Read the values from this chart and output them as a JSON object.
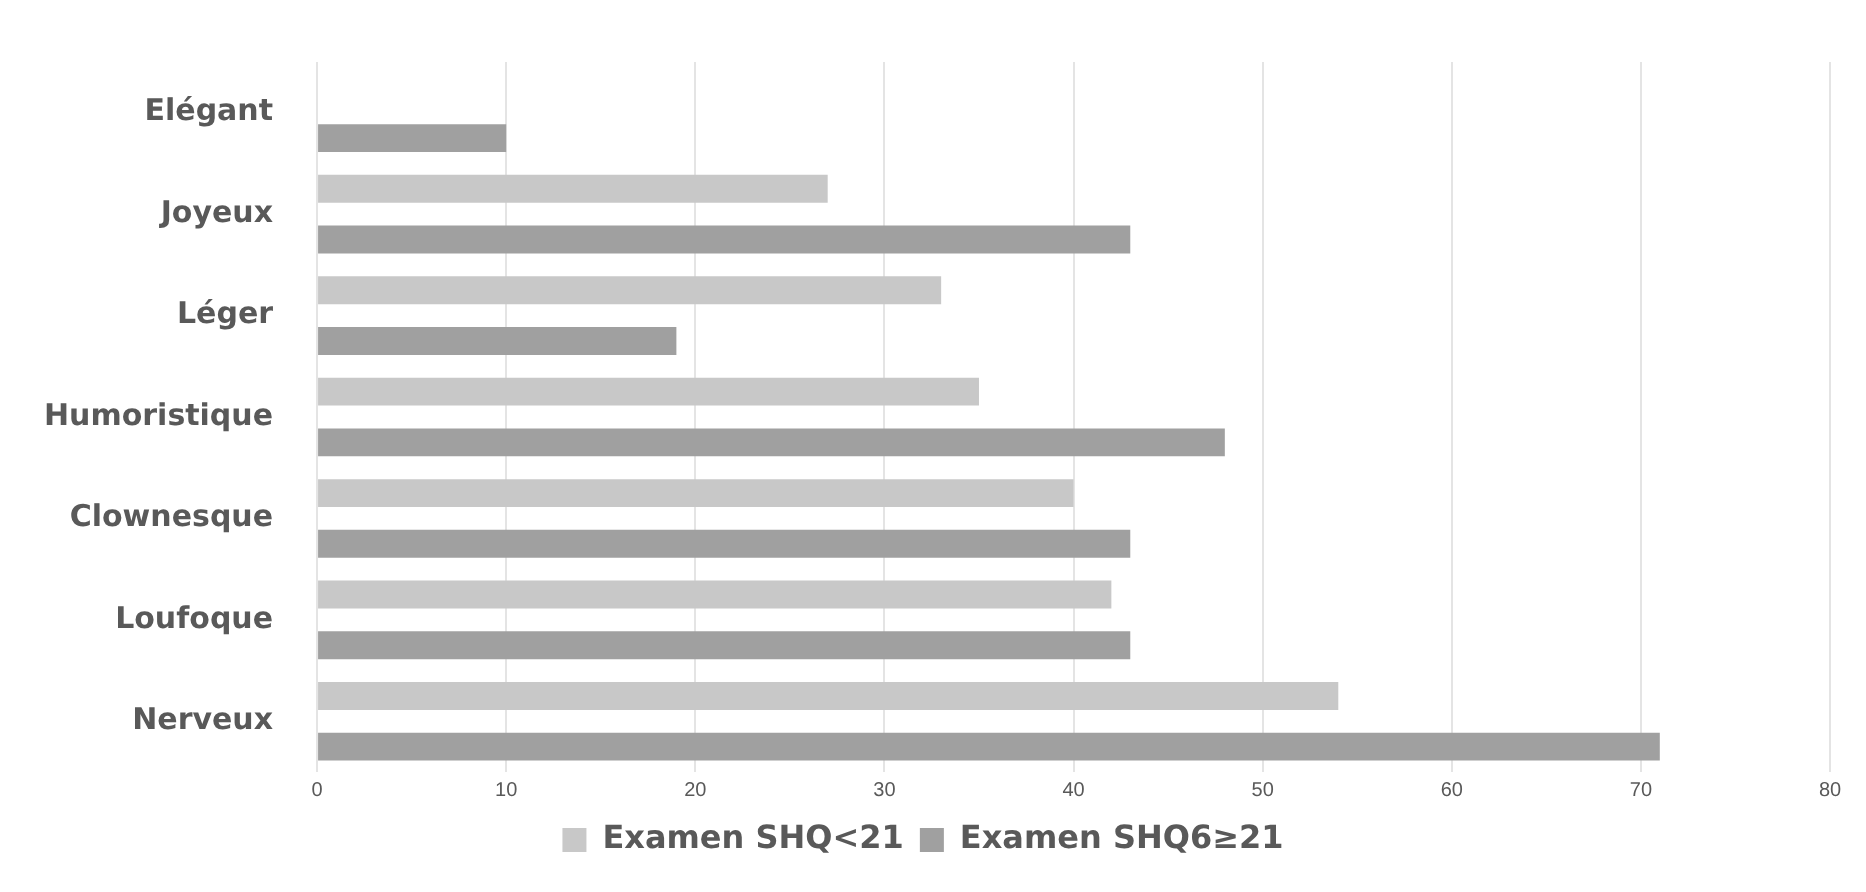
{
  "chart_data": {
    "type": "bar",
    "orientation": "horizontal",
    "categories": [
      "Elégant",
      "Joyeux",
      "Léger",
      "Humoristique",
      "Clownesque",
      "Loufoque",
      "Nerveux"
    ],
    "series": [
      {
        "name": "Examen SHQ<21",
        "color": "#c8c8c8",
        "values": [
          0,
          27,
          33,
          35,
          40,
          42,
          54
        ]
      },
      {
        "name": "Examen SHQ6≥21",
        "color": "#a0a0a0",
        "values": [
          10,
          43,
          19,
          48,
          43,
          43,
          71
        ]
      }
    ],
    "xlim": [
      0,
      80
    ],
    "xticks": [
      0,
      10,
      20,
      30,
      40,
      50,
      60,
      70,
      80
    ],
    "grid": "x",
    "legend": "bottom"
  }
}
